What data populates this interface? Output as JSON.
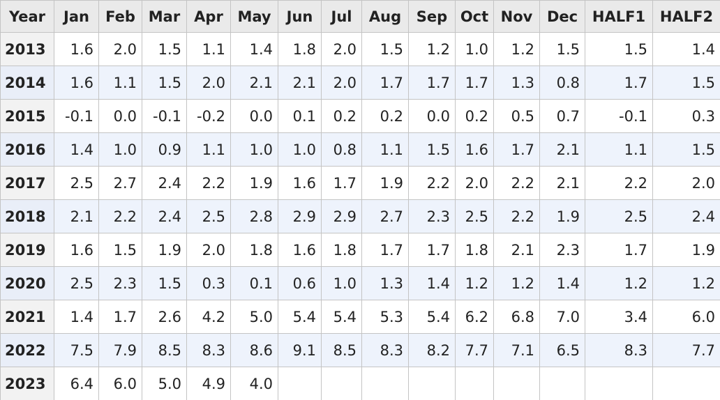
{
  "table": {
    "columns": [
      "Year",
      "Jan",
      "Feb",
      "Mar",
      "Apr",
      "May",
      "Jun",
      "Jul",
      "Aug",
      "Sep",
      "Oct",
      "Nov",
      "Dec",
      "HALF1",
      "HALF2"
    ],
    "rows": [
      [
        "2013",
        "1.6",
        "2.0",
        "1.5",
        "1.1",
        "1.4",
        "1.8",
        "2.0",
        "1.5",
        "1.2",
        "1.0",
        "1.2",
        "1.5",
        "1.5",
        "1.4"
      ],
      [
        "2014",
        "1.6",
        "1.1",
        "1.5",
        "2.0",
        "2.1",
        "2.1",
        "2.0",
        "1.7",
        "1.7",
        "1.7",
        "1.3",
        "0.8",
        "1.7",
        "1.5"
      ],
      [
        "2015",
        "-0.1",
        "0.0",
        "-0.1",
        "-0.2",
        "0.0",
        "0.1",
        "0.2",
        "0.2",
        "0.0",
        "0.2",
        "0.5",
        "0.7",
        "-0.1",
        "0.3"
      ],
      [
        "2016",
        "1.4",
        "1.0",
        "0.9",
        "1.1",
        "1.0",
        "1.0",
        "0.8",
        "1.1",
        "1.5",
        "1.6",
        "1.7",
        "2.1",
        "1.1",
        "1.5"
      ],
      [
        "2017",
        "2.5",
        "2.7",
        "2.4",
        "2.2",
        "1.9",
        "1.6",
        "1.7",
        "1.9",
        "2.2",
        "2.0",
        "2.2",
        "2.1",
        "2.2",
        "2.0"
      ],
      [
        "2018",
        "2.1",
        "2.2",
        "2.4",
        "2.5",
        "2.8",
        "2.9",
        "2.9",
        "2.7",
        "2.3",
        "2.5",
        "2.2",
        "1.9",
        "2.5",
        "2.4"
      ],
      [
        "2019",
        "1.6",
        "1.5",
        "1.9",
        "2.0",
        "1.8",
        "1.6",
        "1.8",
        "1.7",
        "1.7",
        "1.8",
        "2.1",
        "2.3",
        "1.7",
        "1.9"
      ],
      [
        "2020",
        "2.5",
        "2.3",
        "1.5",
        "0.3",
        "0.1",
        "0.6",
        "1.0",
        "1.3",
        "1.4",
        "1.2",
        "1.2",
        "1.4",
        "1.2",
        "1.2"
      ],
      [
        "2021",
        "1.4",
        "1.7",
        "2.6",
        "4.2",
        "5.0",
        "5.4",
        "5.4",
        "5.3",
        "5.4",
        "6.2",
        "6.8",
        "7.0",
        "3.4",
        "6.0"
      ],
      [
        "2022",
        "7.5",
        "7.9",
        "8.5",
        "8.3",
        "8.6",
        "9.1",
        "8.5",
        "8.3",
        "8.2",
        "7.7",
        "7.1",
        "6.5",
        "8.3",
        "7.7"
      ],
      [
        "2023",
        "6.4",
        "6.0",
        "5.0",
        "4.9",
        "4.0"
      ]
    ]
  }
}
